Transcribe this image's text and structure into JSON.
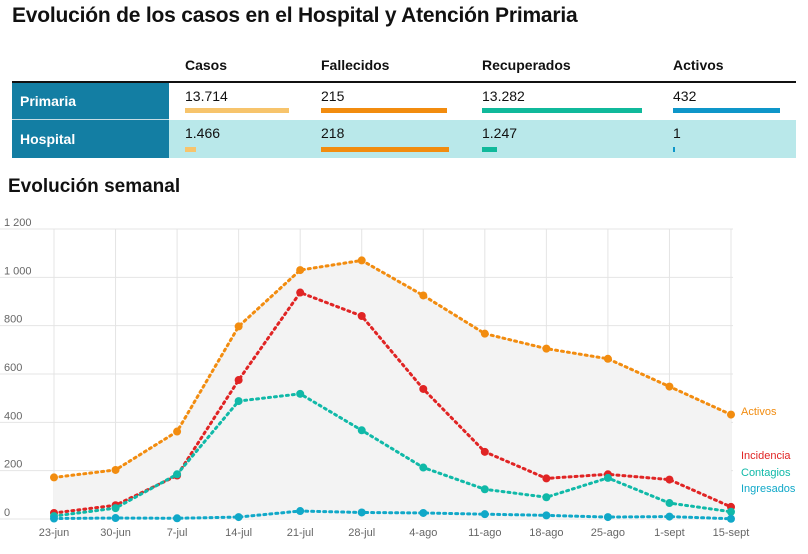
{
  "title": "Evolución de los casos en el Hospital y Atención Primaria",
  "table": {
    "columns": [
      "Casos",
      "Fallecidos",
      "Recuperados",
      "Activos"
    ],
    "column_colors": [
      "#f7c46c",
      "#f28c0f",
      "#10b99b",
      "#0e96c9"
    ],
    "rows": [
      {
        "label": "Primaria",
        "values": [
          "13.714",
          "215",
          "13.282",
          "432"
        ],
        "amounts": [
          13714,
          215,
          13282,
          432
        ]
      },
      {
        "label": "Hospital",
        "values": [
          "1.466",
          "218",
          "1.247",
          "1"
        ],
        "amounts": [
          1466,
          218,
          1247,
          1
        ]
      }
    ]
  },
  "subtitle": "Evolución semanal",
  "chart_data": {
    "type": "line",
    "categories": [
      "23-jun",
      "30-jun",
      "7-jul",
      "14-jul",
      "21-jul",
      "28-jul",
      "4-ago",
      "11-ago",
      "18-ago",
      "25-ago",
      "1-sept",
      "15-sept"
    ],
    "ylim": [
      0,
      1200
    ],
    "yticks": [
      0,
      200,
      400,
      600,
      800,
      1000,
      1200
    ],
    "ytick_labels": [
      "0",
      "200",
      "400",
      "600",
      "800",
      "1 000",
      "1 200"
    ],
    "grid": true,
    "series": [
      {
        "name": "Activos",
        "color": "#f28c0f",
        "values": [
          172,
          203,
          362,
          797,
          1030,
          1070,
          925,
          767,
          705,
          663,
          548,
          432
        ]
      },
      {
        "name": "Incidencia",
        "color": "#e02424",
        "values": [
          25,
          57,
          180,
          575,
          937,
          840,
          538,
          278,
          168,
          185,
          163,
          50
        ]
      },
      {
        "name": "Contagios",
        "color": "#10b9a8",
        "values": [
          12,
          45,
          185,
          488,
          518,
          367,
          213,
          123,
          90,
          170,
          66,
          30
        ]
      },
      {
        "name": "Ingresados",
        "color": "#10a8c8",
        "values": [
          2,
          4,
          3,
          8,
          33,
          27,
          25,
          20,
          15,
          8,
          10,
          1
        ]
      }
    ]
  }
}
